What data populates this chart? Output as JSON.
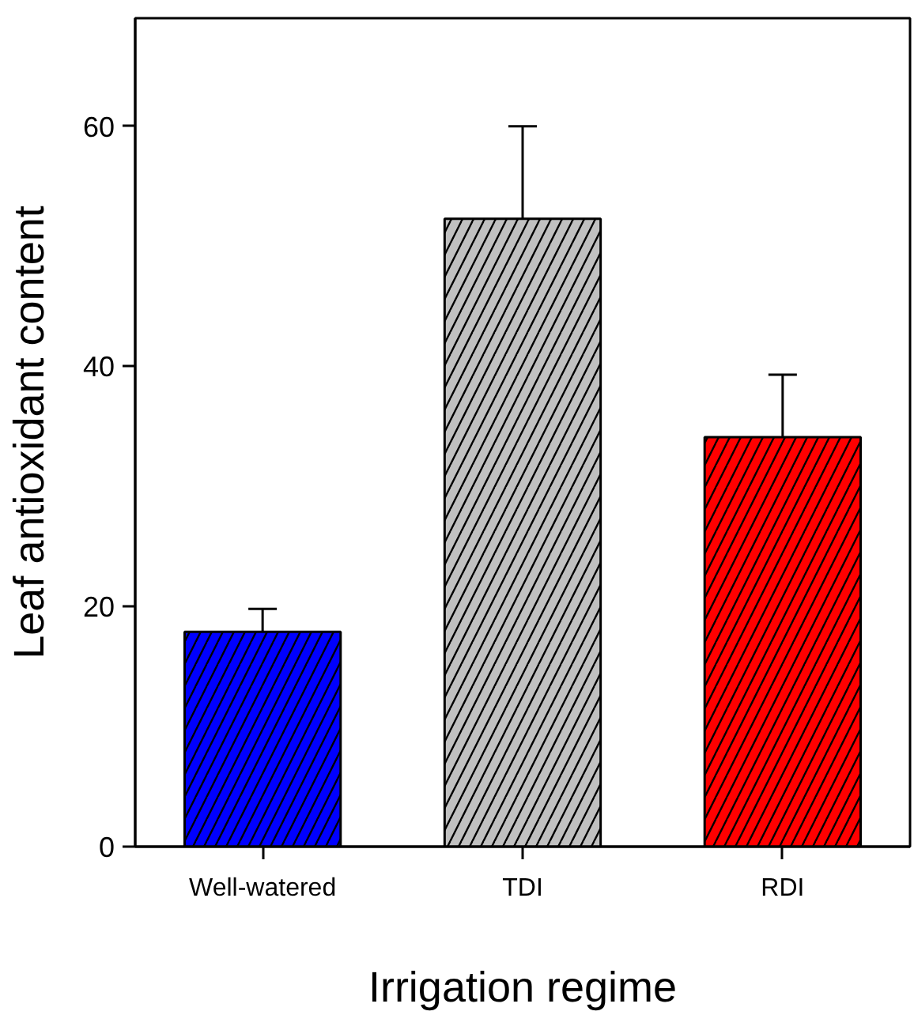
{
  "chart_data": {
    "type": "bar",
    "xlabel": "Irrigation regime",
    "ylabel": "Leaf antioxidant content",
    "categories": [
      "Well-watered",
      "TDI",
      "RDI"
    ],
    "values": [
      17.9,
      52.3,
      34.1
    ],
    "colors": [
      "#0000ff",
      "#c0c0c0",
      "#ff0000"
    ],
    "errors": [
      [
        17.9,
        19.8
      ],
      [
        52.3,
        60.0
      ],
      [
        34.1,
        39.3
      ]
    ],
    "ylim": [
      0,
      69
    ],
    "yticks": [
      0,
      20,
      40,
      60
    ],
    "grid": false
  }
}
